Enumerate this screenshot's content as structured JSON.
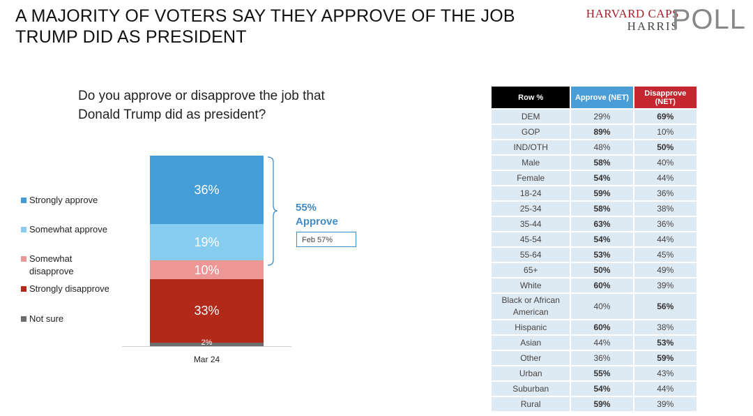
{
  "title": "A MAJORITY OF VOTERS SAY THEY APPROVE OF THE JOB TRUMP DID AS PRESIDENT",
  "logo": {
    "line1": "HARVARD CAPS",
    "line2": "HARRIS",
    "line3": "POLL"
  },
  "question": "Do you approve or disapprove the job that Donald Trump did as president?",
  "legend": [
    {
      "label": "Strongly approve",
      "color": "#449dd6"
    },
    {
      "label": "Somewhat approve",
      "color": "#87cdf0"
    },
    {
      "label": "Somewhat disapprove",
      "color": "#ec9696"
    },
    {
      "label": "Strongly disapprove",
      "color": "#b22819"
    },
    {
      "label": "Not sure",
      "color": "#6d6d6d"
    }
  ],
  "chart_data": {
    "type": "bar",
    "stacked": true,
    "categories": [
      "Mar 24"
    ],
    "series": [
      {
        "name": "Strongly approve",
        "values": [
          36
        ],
        "label": "36%",
        "color": "#449dd6"
      },
      {
        "name": "Somewhat approve",
        "values": [
          19
        ],
        "label": "19%",
        "color": "#87cdf0"
      },
      {
        "name": "Somewhat disapprove",
        "values": [
          10
        ],
        "label": "10%",
        "color": "#ec9696"
      },
      {
        "name": "Strongly disapprove",
        "values": [
          33
        ],
        "label": "33%",
        "color": "#b22819"
      },
      {
        "name": "Not sure",
        "values": [
          2
        ],
        "label": "2%",
        "color": "#6d6d6d"
      }
    ],
    "annotation": {
      "net_value": "55%",
      "net_label": "Approve",
      "prior": "Feb 57%"
    },
    "table": {
      "headers": [
        "Row %",
        "Approve (NET)",
        "Disapprove (NET)"
      ],
      "rows": [
        {
          "label": "DEM",
          "approve": "29%",
          "disapprove": "69%",
          "bold": "disapprove"
        },
        {
          "label": "GOP",
          "approve": "89%",
          "disapprove": "10%",
          "bold": "approve"
        },
        {
          "label": "IND/OTH",
          "approve": "48%",
          "disapprove": "50%",
          "bold": "disapprove"
        },
        {
          "label": "Male",
          "approve": "58%",
          "disapprove": "40%",
          "bold": "approve"
        },
        {
          "label": "Female",
          "approve": "54%",
          "disapprove": "44%",
          "bold": "approve"
        },
        {
          "label": "18-24",
          "approve": "59%",
          "disapprove": "36%",
          "bold": "approve"
        },
        {
          "label": "25-34",
          "approve": "58%",
          "disapprove": "38%",
          "bold": "approve"
        },
        {
          "label": "35-44",
          "approve": "63%",
          "disapprove": "36%",
          "bold": "approve"
        },
        {
          "label": "45-54",
          "approve": "54%",
          "disapprove": "44%",
          "bold": "approve"
        },
        {
          "label": "55-64",
          "approve": "53%",
          "disapprove": "45%",
          "bold": "approve"
        },
        {
          "label": "65+",
          "approve": "50%",
          "disapprove": "49%",
          "bold": "approve"
        },
        {
          "label": "White",
          "approve": "60%",
          "disapprove": "39%",
          "bold": "approve"
        },
        {
          "label": "Black or African American",
          "approve": "40%",
          "disapprove": "56%",
          "bold": "disapprove"
        },
        {
          "label": "Hispanic",
          "approve": "60%",
          "disapprove": "38%",
          "bold": "approve"
        },
        {
          "label": "Asian",
          "approve": "44%",
          "disapprove": "53%",
          "bold": "disapprove"
        },
        {
          "label": "Other",
          "approve": "36%",
          "disapprove": "59%",
          "bold": "disapprove"
        },
        {
          "label": "Urban",
          "approve": "55%",
          "disapprove": "43%",
          "bold": "approve"
        },
        {
          "label": "Suburban",
          "approve": "54%",
          "disapprove": "44%",
          "bold": "approve"
        },
        {
          "label": "Rural",
          "approve": "59%",
          "disapprove": "39%",
          "bold": "approve"
        }
      ]
    }
  }
}
